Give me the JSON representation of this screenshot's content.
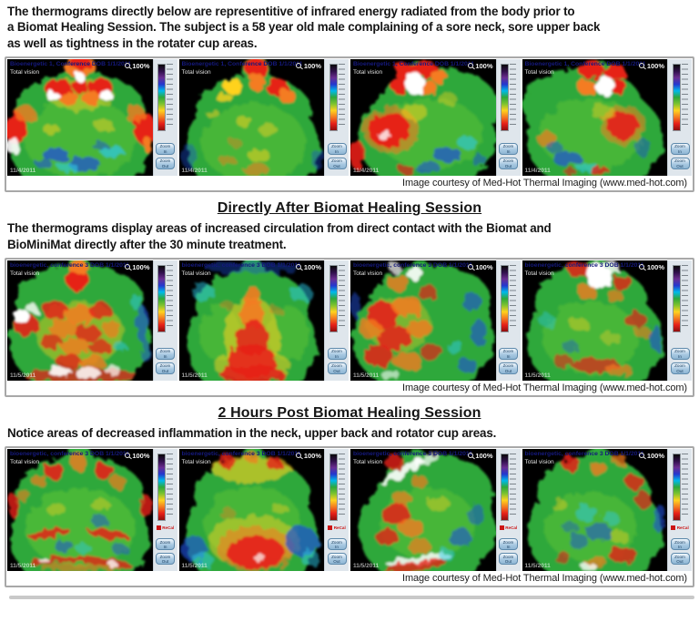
{
  "document": {
    "credit": "Image courtesy of Med-Hot Thermal Imaging (www.med-hot.com)"
  },
  "panel_ui": {
    "subtitle": "Total vision",
    "zoom_level": "100%",
    "zoom_in_label": "Zoom\nIn",
    "zoom_out_label": "Zoom\nOut",
    "recal_label": "ReCal"
  },
  "colors": {
    "panel_background": "#000000",
    "scale_strip_background": "#dfe6ec",
    "scale_gradient_top_to_bottom": [
      "#0a0a0a",
      "#30104a",
      "#6a2d91",
      "#2438cf",
      "#00b9ea",
      "#2fa83a",
      "#7fc32f",
      "#ffd21f",
      "#f47b20",
      "#e62019",
      "#8f0e0e"
    ],
    "recal_red": "#cc1414"
  },
  "sections": [
    {
      "heading": "",
      "body": "The thermograms directly below are representitive of infrared energy radiated from the body prior to\na Biomat Healing Session.  The subject is a 58 year old male complaining of a sore neck, sore upper back\nas well as tightness in the rotater cup areas.",
      "panels": [
        {
          "title": "Bioenergetic 1, Conference DOB 1/1/2011",
          "date": "11/4/2011",
          "pose": "front_pre",
          "recal": false
        },
        {
          "title": "Bioenergetic 1, Conference DOB 1/1/2011",
          "date": "11/4/2011",
          "pose": "back_pre",
          "recal": false
        },
        {
          "title": "Bioenergetic 1, Conference DOB 1/1/2011",
          "date": "11/4/2011",
          "pose": "side_left_pre",
          "recal": false
        },
        {
          "title": "Bioenergetic 1, Conference DOB 1/1/2011",
          "date": "11/4/2011",
          "pose": "side_right_pre",
          "recal": false
        }
      ]
    },
    {
      "heading": "Directly After Biomat Healing Session",
      "body": "The thermograms display areas of increased circulation from direct contact with the Biomat and\nBioMiniMat directly after the 30 minute treatment.",
      "panels": [
        {
          "title": "bioenergetic, conference 3 DOB 1/1/2011",
          "date": "11/5/2011",
          "pose": "front_post",
          "recal": false
        },
        {
          "title": "bioenergetic, conference 3 DOB 1/1/2011",
          "date": "11/5/2011",
          "pose": "back_post",
          "recal": false
        },
        {
          "title": "bioenergetic, conference 3 DOB 1/1/2011",
          "date": "11/5/2011",
          "pose": "side_left_post",
          "recal": false
        },
        {
          "title": "bioenergetic, conference 3 DOB 1/1/2011",
          "date": "11/5/2011",
          "pose": "side_right_post",
          "recal": false
        }
      ]
    },
    {
      "heading": "2 Hours Post Biomat Healing Session",
      "body": "Notice areas of decreased inflammation in the neck, upper back and rotator cup areas.",
      "panels": [
        {
          "title": "bioenergetic, conference 3 DOB 1/1/2011",
          "date": "11/5/2011",
          "pose": "front_2h",
          "recal": true
        },
        {
          "title": "bioenergetic, conference 3 DOB 1/1/2011",
          "date": "11/5/2011",
          "pose": "back_2h",
          "recal": true
        },
        {
          "title": "bioenergetic, conference 3 DOB 1/1/2011",
          "date": "11/5/2011",
          "pose": "side_left_2h",
          "recal": true
        },
        {
          "title": "bioenergetic, conference 3 DOB 1/1/2011",
          "date": "11/5/2011",
          "pose": "side_right_2h",
          "recal": true
        }
      ]
    }
  ]
}
